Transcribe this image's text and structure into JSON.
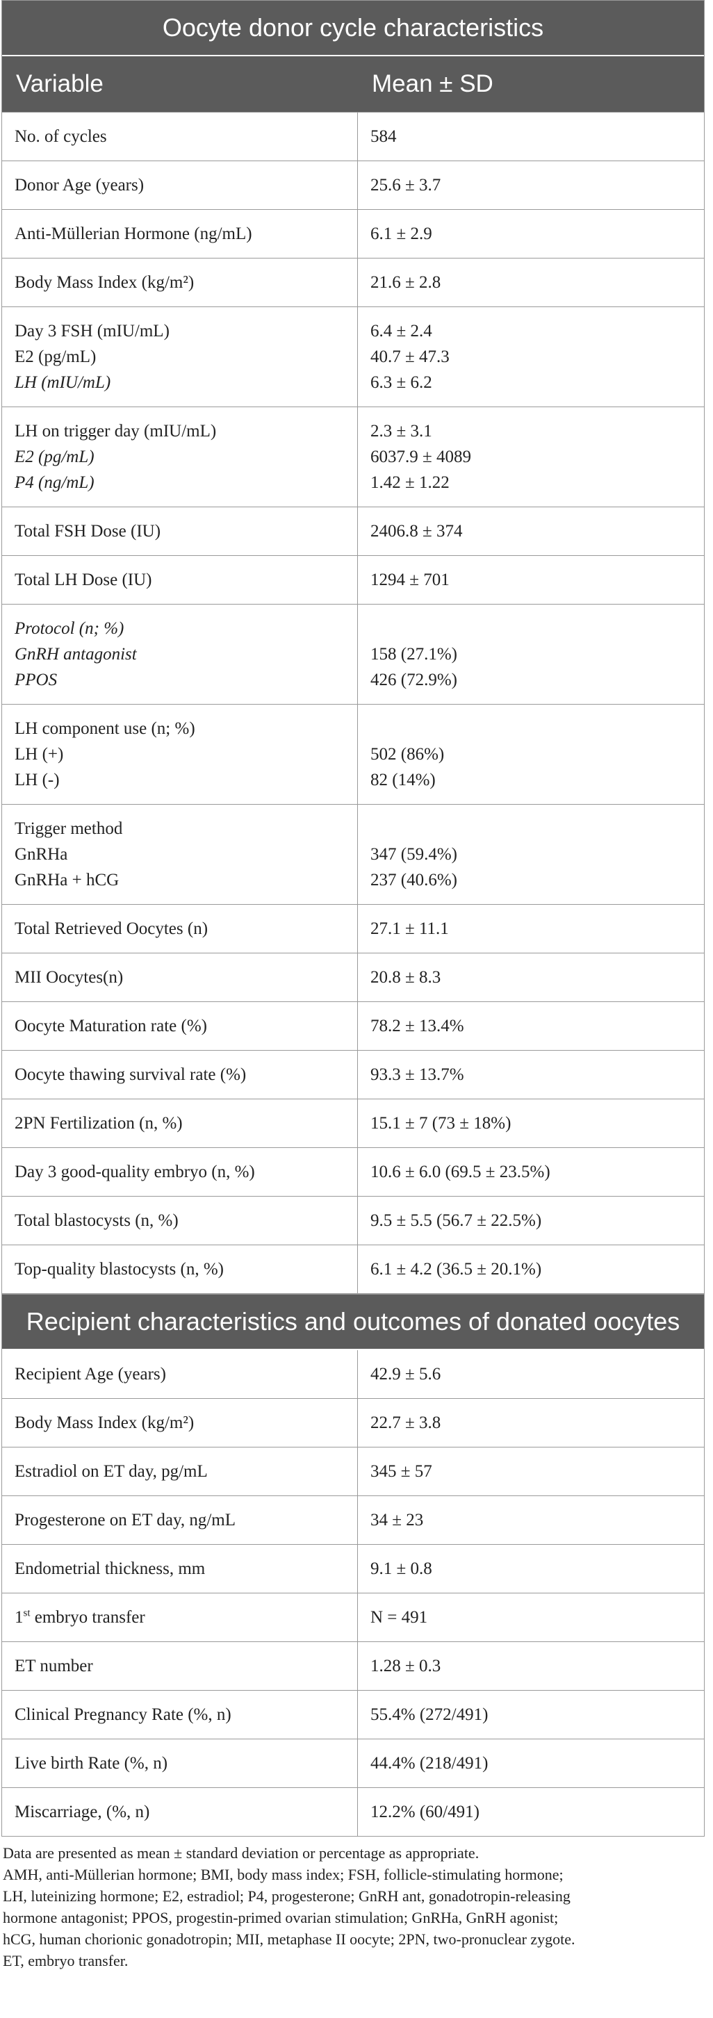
{
  "sections": [
    {
      "title": "Oocyte donor cycle characteristics",
      "header": [
        "Variable",
        "Mean ± SD"
      ],
      "rows": [
        {
          "variable": [
            "No. of cycles"
          ],
          "value": [
            "584"
          ]
        },
        {
          "variable": [
            "Donor Age (years)"
          ],
          "value": [
            "25.6 ± 3.7"
          ]
        },
        {
          "variable": [
            "Anti-Müllerian Hormone (ng/mL)"
          ],
          "value": [
            "6.1 ± 2.9"
          ]
        },
        {
          "variable": [
            "Body Mass Index (kg/m²)"
          ],
          "value": [
            "21.6 ± 2.8"
          ]
        },
        {
          "variable": [
            "Day 3 FSH (mIU/mL)",
            "E2 (pg/mL)",
            "LH (mIU/mL)"
          ],
          "value": [
            "6.4 ± 2.4",
            "40.7 ± 47.3",
            "6.3 ± 6.2"
          ]
        },
        {
          "variable": [
            "LH on trigger day (mIU/mL)",
            "E2 (pg/mL)",
            "P4 (ng/mL)"
          ],
          "value": [
            "2.3 ± 3.1",
            "6037.9 ± 4089",
            "1.42 ± 1.22"
          ]
        },
        {
          "variable": [
            "Total FSH Dose (IU)"
          ],
          "value": [
            "2406.8 ± 374"
          ]
        },
        {
          "variable": [
            "Total LH Dose (IU)"
          ],
          "value": [
            "1294 ± 701"
          ]
        },
        {
          "variable": [
            "Protocol (n; %)",
            "GnRH antagonist",
            "PPOS"
          ],
          "value": [
            "158 (27.1%)",
            "426 (72.9%)"
          ]
        },
        {
          "variable": [
            "LH component use (n; %)",
            "LH (+)",
            "LH (-)"
          ],
          "value": [
            "502 (86%)",
            "82 (14%)"
          ]
        },
        {
          "variable": [
            "Trigger method",
            "GnRHa",
            "GnRHa + hCG"
          ],
          "value": [
            "347 (59.4%)",
            "237 (40.6%)"
          ]
        },
        {
          "variable": [
            "Total Retrieved Oocytes (n)"
          ],
          "value": [
            "27.1 ± 11.1"
          ]
        },
        {
          "variable": [
            "MII Oocytes(n)"
          ],
          "value": [
            "20.8 ± 8.3"
          ]
        },
        {
          "variable": [
            "Oocyte Maturation rate (%)"
          ],
          "value": [
            "78.2 ± 13.4%"
          ]
        },
        {
          "variable": [
            "Oocyte thawing survival rate (%)"
          ],
          "value": [
            "93.3 ± 13.7%"
          ]
        },
        {
          "variable": [
            "2PN Fertilization (n, %)"
          ],
          "value": [
            "15.1 ± 7 (73 ± 18%)"
          ]
        },
        {
          "variable": [
            "Day 3 good-quality embryo (n, %)"
          ],
          "value": [
            "10.6 ± 6.0 (69.5 ± 23.5%)"
          ]
        },
        {
          "variable": [
            "Total blastocysts (n, %)"
          ],
          "value": [
            "9.5 ± 5.5 (56.7 ± 22.5%)"
          ]
        },
        {
          "variable": [
            "Top-quality blastocysts (n, %)"
          ],
          "value": [
            "6.1 ± 4.2 (36.5 ± 20.1%)"
          ]
        }
      ]
    },
    {
      "title": "Recipient characteristics and outcomes of donated oocytes",
      "rows": [
        {
          "variable": [
            "Recipient Age (years)"
          ],
          "value": [
            "42.9 ± 5.6"
          ]
        },
        {
          "variable": [
            "Body Mass Index (kg/m²)"
          ],
          "value": [
            "22.7 ± 3.8"
          ]
        },
        {
          "variable": [
            "Estradiol on ET day, pg/mL"
          ],
          "value": [
            "345 ± 57"
          ]
        },
        {
          "variable": [
            "Progesterone on ET day, ng/mL"
          ],
          "value": [
            "34 ± 23"
          ]
        },
        {
          "variable": [
            "Endometrial thickness, mm"
          ],
          "value": [
            "9.1 ± 0.8"
          ]
        },
        {
          "variable_parts": [
            "1",
            "st",
            " embryo transfer"
          ],
          "value": [
            "N = 491"
          ]
        },
        {
          "variable": [
            "ET number"
          ],
          "value": [
            "1.28 ± 0.3"
          ]
        },
        {
          "variable": [
            "Clinical Pregnancy Rate (%, n)"
          ],
          "value": [
            "55.4% (272/491)"
          ]
        },
        {
          "variable": [
            "Live birth Rate (%, n)"
          ],
          "value": [
            "44.4% (218/491)"
          ]
        },
        {
          "variable": [
            "Miscarriage, (%, n)"
          ],
          "value": [
            "12.2% (60/491)"
          ]
        }
      ]
    }
  ],
  "footnote": [
    "Data are presented as mean ± standard deviation or percentage as appropriate.",
    "AMH, anti-Müllerian hormone; BMI, body mass index; FSH, follicle-stimulating hormone;",
    "LH, luteinizing hormone; E2, estradiol; P4, progesterone; GnRH ant, gonadotropin-releasing",
    "hormone antagonist; PPOS, progestin-primed ovarian stimulation; GnRHa, GnRH agonist;",
    "hCG, human chorionic gonadotropin; MII, metaphase II oocyte; 2PN, two-pronuclear zygote.",
    "ET, embryo transfer."
  ]
}
